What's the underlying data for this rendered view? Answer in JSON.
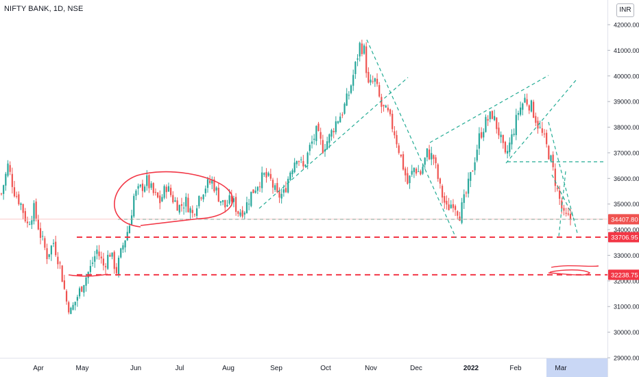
{
  "header": {
    "title": "NIFTY BANK, 1D, NSE",
    "currency": "INR"
  },
  "colors": {
    "up": "#26a69a",
    "down": "#ef5350",
    "annotation_red": "#f23645",
    "annotation_teal": "#22ab94",
    "time_highlight": "#c9d7f5"
  },
  "chart_data": {
    "type": "candlestick",
    "instrument": "NIFTY BANK",
    "timeframe": "1D",
    "exchange": "NSE",
    "currency": "INR",
    "ylim": [
      28900,
      42300
    ],
    "y_ticks": [
      "29000.00",
      "30000.00",
      "31000.00",
      "32000.00",
      "33000.00",
      "34000.00",
      "35000.00",
      "36000.00",
      "37000.00",
      "38000.00",
      "39000.00",
      "40000.00",
      "41000.00",
      "42000.00"
    ],
    "x_ticks": [
      "Apr",
      "May",
      "Jun",
      "Jul",
      "Aug",
      "Sep",
      "Oct",
      "Nov",
      "Dec",
      "2022",
      "Feb",
      "Mar"
    ],
    "price_labels": [
      {
        "value": 34407.8,
        "text": "34407.80",
        "kind": "last"
      },
      {
        "value": 33706.95,
        "text": "33706.95",
        "kind": "level"
      },
      {
        "value": 32238.75,
        "text": "32238.75",
        "kind": "level"
      }
    ],
    "horizontal_levels": [
      {
        "value": 33706.95,
        "style": "red-dashed"
      },
      {
        "value": 32238.75,
        "style": "red-dashed"
      },
      {
        "value": 34407.8,
        "style": "teal-dashed"
      },
      {
        "value": 36650,
        "style": "teal-dashed"
      }
    ],
    "price_path": [
      [
        0,
        35400
      ],
      [
        3,
        36500
      ],
      [
        6,
        35500
      ],
      [
        9,
        35000
      ],
      [
        12,
        34200
      ],
      [
        15,
        34800
      ],
      [
        18,
        33800
      ],
      [
        21,
        33000
      ],
      [
        24,
        33500
      ],
      [
        27,
        32600
      ],
      [
        30,
        31200
      ],
      [
        32,
        30800
      ],
      [
        35,
        31400
      ],
      [
        38,
        32000
      ],
      [
        41,
        32500
      ],
      [
        44,
        33200
      ],
      [
        47,
        32600
      ],
      [
        50,
        33100
      ],
      [
        53,
        32400
      ],
      [
        56,
        33400
      ],
      [
        59,
        34200
      ],
      [
        61,
        35300
      ],
      [
        64,
        35600
      ],
      [
        67,
        35900
      ],
      [
        70,
        35400
      ],
      [
        73,
        35100
      ],
      [
        76,
        35700
      ],
      [
        79,
        35200
      ],
      [
        82,
        34900
      ],
      [
        85,
        35100
      ],
      [
        88,
        34600
      ],
      [
        91,
        35300
      ],
      [
        94,
        35700
      ],
      [
        97,
        35900
      ],
      [
        100,
        35300
      ],
      [
        103,
        34900
      ],
      [
        106,
        35200
      ],
      [
        109,
        34700
      ],
      [
        112,
        34800
      ],
      [
        115,
        35400
      ],
      [
        118,
        35800
      ],
      [
        121,
        36100
      ],
      [
        124,
        35900
      ],
      [
        127,
        35300
      ],
      [
        130,
        35400
      ],
      [
        133,
        36300
      ],
      [
        136,
        36900
      ],
      [
        139,
        36400
      ],
      [
        142,
        37200
      ],
      [
        145,
        37800
      ],
      [
        148,
        37200
      ],
      [
        151,
        37600
      ],
      [
        154,
        38200
      ],
      [
        157,
        38600
      ],
      [
        160,
        39300
      ],
      [
        163,
        40400
      ],
      [
        165,
        41200
      ],
      [
        167,
        41000
      ],
      [
        169,
        39600
      ],
      [
        172,
        39800
      ],
      [
        175,
        38800
      ],
      [
        178,
        38500
      ],
      [
        181,
        37800
      ],
      [
        184,
        36800
      ],
      [
        187,
        35800
      ],
      [
        190,
        36400
      ],
      [
        193,
        36200
      ],
      [
        196,
        37000
      ],
      [
        199,
        36800
      ],
      [
        202,
        35600
      ],
      [
        205,
        34800
      ],
      [
        208,
        35100
      ],
      [
        211,
        34600
      ],
      [
        214,
        35400
      ],
      [
        217,
        36400
      ],
      [
        220,
        37600
      ],
      [
        223,
        38200
      ],
      [
        226,
        38500
      ],
      [
        229,
        37800
      ],
      [
        232,
        36800
      ],
      [
        235,
        37600
      ],
      [
        238,
        38600
      ],
      [
        241,
        39100
      ],
      [
        244,
        38800
      ],
      [
        247,
        38100
      ],
      [
        250,
        37500
      ],
      [
        253,
        36700
      ],
      [
        256,
        35500
      ],
      [
        259,
        34500
      ],
      [
        262,
        34407.8
      ]
    ]
  }
}
